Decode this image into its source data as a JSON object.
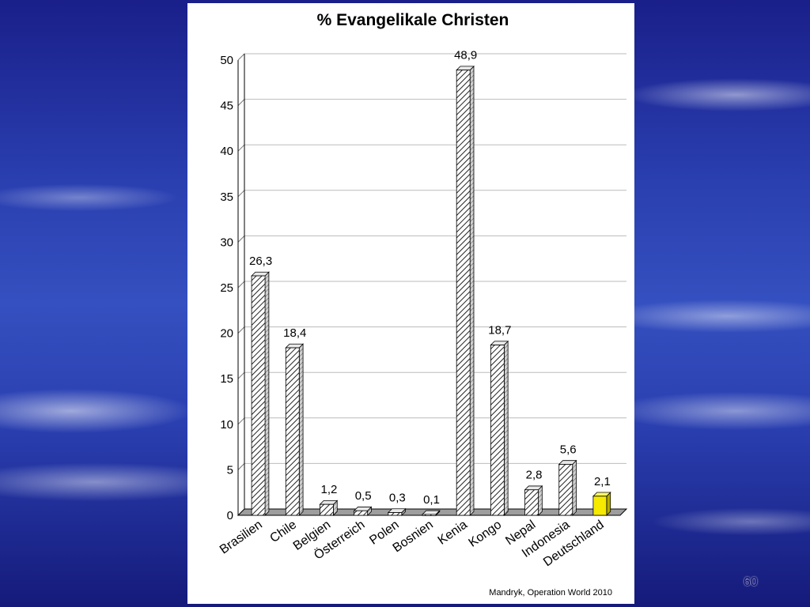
{
  "slide_number": "60",
  "source": "Mandryk, Operation World 2010",
  "chart_data": {
    "type": "bar",
    "title": "% Evangelikale Christen",
    "categories": [
      "Brasilien",
      "Chile",
      "Belgien",
      "Österreich",
      "Polen",
      "Bosnien",
      "Kenia",
      "Kongo",
      "Nepal",
      "Indonesia",
      "Deutschland"
    ],
    "values": [
      26.3,
      18.4,
      1.2,
      0.5,
      0.3,
      0.1,
      48.9,
      18.7,
      2.8,
      5.6,
      2.1
    ],
    "value_labels": [
      "26,3",
      "18,4",
      "1,2",
      "0,5",
      "0,3",
      "0,1",
      "48,9",
      "18,7",
      "2,8",
      "5,6",
      "2,1"
    ],
    "y_ticks": [
      0,
      5,
      10,
      15,
      20,
      25,
      30,
      35,
      40,
      45,
      50
    ],
    "ylim": [
      0,
      50
    ],
    "grid": true,
    "highlight_category": "Deutschland",
    "colors": {
      "bar": "#ffffff",
      "hatch": "#222222",
      "highlight": "#f5ea00"
    }
  }
}
